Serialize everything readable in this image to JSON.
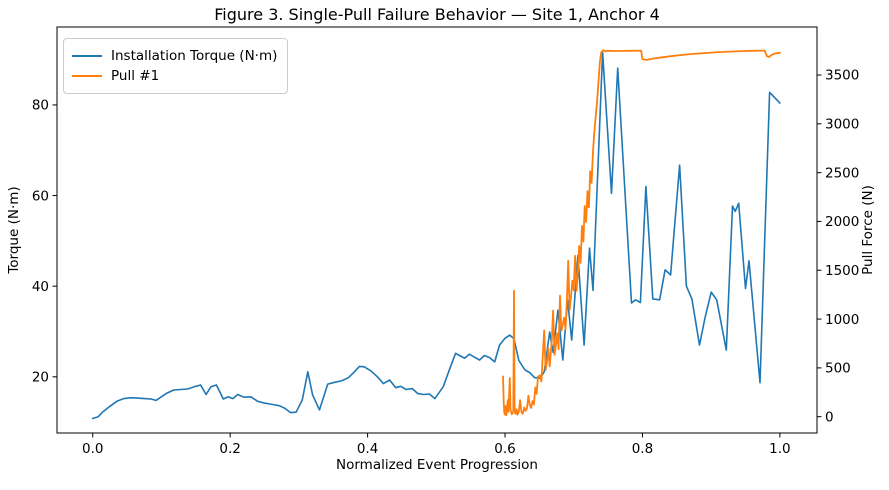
{
  "chart_data": {
    "type": "line",
    "title": "Figure 3. Single-Pull Failure Behavior — Site 1, Anchor 4",
    "xlabel": "Normalized Event Progression",
    "ylabel_left": "Torque (N·m)",
    "ylabel_right": "Pull Force (N)",
    "xlim": [
      -0.052,
      1.054
    ],
    "ylim_left": [
      7.6,
      97.2
    ],
    "ylim_right": [
      -167,
      3992
    ],
    "grid": false,
    "legend_position": "upper left",
    "background": "#ffffff",
    "spine_color": "#000000",
    "xticks": {
      "values": [
        0.0,
        0.2,
        0.4,
        0.6,
        0.8,
        1.0
      ],
      "labels": [
        "0.0",
        "0.2",
        "0.4",
        "0.6",
        "0.8",
        "1.0"
      ]
    },
    "yticks_left": {
      "values": [
        20,
        40,
        60,
        80
      ],
      "labels": [
        "20",
        "40",
        "60",
        "80"
      ]
    },
    "yticks_right": {
      "values": [
        0,
        500,
        1000,
        1500,
        2000,
        2500,
        3000,
        3500
      ],
      "labels": [
        "0",
        "500",
        "1000",
        "1500",
        "2000",
        "2500",
        "3000",
        "3500"
      ]
    },
    "series": [
      {
        "id": "installation-torque",
        "name": "Installation Torque (N·m)",
        "color": "#1f77b4",
        "axis": "left",
        "width": 1.6,
        "points": [
          [
            0.0,
            10.8
          ],
          [
            0.008,
            11.2
          ],
          [
            0.015,
            12.3
          ],
          [
            0.025,
            13.5
          ],
          [
            0.035,
            14.6
          ],
          [
            0.045,
            15.2
          ],
          [
            0.055,
            15.4
          ],
          [
            0.065,
            15.3
          ],
          [
            0.075,
            15.2
          ],
          [
            0.085,
            15.1
          ],
          [
            0.092,
            14.8
          ],
          [
            0.1,
            15.6
          ],
          [
            0.108,
            16.4
          ],
          [
            0.118,
            17.1
          ],
          [
            0.128,
            17.2
          ],
          [
            0.138,
            17.3
          ],
          [
            0.15,
            17.9
          ],
          [
            0.157,
            18.2
          ],
          [
            0.165,
            16.1
          ],
          [
            0.172,
            17.8
          ],
          [
            0.18,
            18.2
          ],
          [
            0.19,
            15.1
          ],
          [
            0.197,
            15.6
          ],
          [
            0.204,
            15.2
          ],
          [
            0.211,
            16.1
          ],
          [
            0.22,
            15.5
          ],
          [
            0.23,
            15.6
          ],
          [
            0.24,
            14.6
          ],
          [
            0.25,
            14.2
          ],
          [
            0.262,
            13.9
          ],
          [
            0.272,
            13.6
          ],
          [
            0.279,
            13.1
          ],
          [
            0.288,
            12.1
          ],
          [
            0.296,
            12.2
          ],
          [
            0.305,
            14.9
          ],
          [
            0.313,
            21.1
          ],
          [
            0.32,
            16.0
          ],
          [
            0.33,
            12.7
          ],
          [
            0.342,
            18.4
          ],
          [
            0.352,
            18.8
          ],
          [
            0.362,
            19.1
          ],
          [
            0.372,
            19.8
          ],
          [
            0.38,
            21.0
          ],
          [
            0.388,
            22.3
          ],
          [
            0.395,
            22.2
          ],
          [
            0.405,
            21.3
          ],
          [
            0.415,
            19.9
          ],
          [
            0.423,
            18.5
          ],
          [
            0.432,
            19.3
          ],
          [
            0.441,
            17.6
          ],
          [
            0.448,
            17.9
          ],
          [
            0.456,
            17.2
          ],
          [
            0.465,
            17.4
          ],
          [
            0.473,
            16.3
          ],
          [
            0.482,
            16.1
          ],
          [
            0.49,
            16.2
          ],
          [
            0.498,
            15.2
          ],
          [
            0.51,
            17.8
          ],
          [
            0.52,
            22.0
          ],
          [
            0.528,
            25.2
          ],
          [
            0.535,
            24.6
          ],
          [
            0.541,
            24.1
          ],
          [
            0.548,
            25.0
          ],
          [
            0.555,
            24.4
          ],
          [
            0.563,
            23.7
          ],
          [
            0.57,
            24.7
          ],
          [
            0.578,
            24.2
          ],
          [
            0.585,
            23.3
          ],
          [
            0.592,
            27.0
          ],
          [
            0.6,
            28.5
          ],
          [
            0.607,
            29.2
          ],
          [
            0.613,
            28.4
          ],
          [
            0.62,
            23.6
          ],
          [
            0.629,
            21.5
          ],
          [
            0.636,
            20.9
          ],
          [
            0.643,
            19.8
          ],
          [
            0.651,
            19.7
          ],
          [
            0.657,
            21.1
          ],
          [
            0.665,
            29.9
          ],
          [
            0.67,
            25.4
          ],
          [
            0.677,
            34.7
          ],
          [
            0.684,
            23.7
          ],
          [
            0.691,
            36.9
          ],
          [
            0.697,
            28.1
          ],
          [
            0.706,
            46.8
          ],
          [
            0.715,
            27.0
          ],
          [
            0.723,
            48.4
          ],
          [
            0.728,
            39.1
          ],
          [
            0.742,
            91.6
          ],
          [
            0.755,
            60.5
          ],
          [
            0.764,
            88.1
          ],
          [
            0.784,
            36.3
          ],
          [
            0.79,
            37.0
          ],
          [
            0.797,
            36.4
          ],
          [
            0.805,
            62.0
          ],
          [
            0.815,
            37.2
          ],
          [
            0.825,
            37.0
          ],
          [
            0.833,
            43.6
          ],
          [
            0.841,
            42.5
          ],
          [
            0.854,
            66.7
          ],
          [
            0.864,
            40.0
          ],
          [
            0.872,
            37.2
          ],
          [
            0.883,
            27.0
          ],
          [
            0.891,
            33.0
          ],
          [
            0.9,
            38.7
          ],
          [
            0.908,
            37.0
          ],
          [
            0.922,
            25.9
          ],
          [
            0.931,
            57.7
          ],
          [
            0.935,
            56.5
          ],
          [
            0.94,
            58.3
          ],
          [
            0.95,
            39.5
          ],
          [
            0.955,
            45.6
          ],
          [
            0.971,
            18.7
          ],
          [
            0.985,
            82.8
          ],
          [
            1.0,
            80.4
          ]
        ]
      },
      {
        "id": "pull-1",
        "name": "Pull #1",
        "color": "#ff7f0e",
        "axis": "right",
        "width": 1.8,
        "points": [
          [
            0.597,
            413
          ],
          [
            0.598,
            150
          ],
          [
            0.599,
            40
          ],
          [
            0.6,
            20
          ],
          [
            0.601,
            110
          ],
          [
            0.602,
            15
          ],
          [
            0.604,
            170
          ],
          [
            0.605,
            50
          ],
          [
            0.607,
            396
          ],
          [
            0.608,
            70
          ],
          [
            0.61,
            25
          ],
          [
            0.612,
            55
          ],
          [
            0.613,
            1291
          ],
          [
            0.614,
            90
          ],
          [
            0.615,
            30
          ],
          [
            0.617,
            75
          ],
          [
            0.618,
            20
          ],
          [
            0.62,
            50
          ],
          [
            0.622,
            170
          ],
          [
            0.624,
            45
          ],
          [
            0.626,
            30
          ],
          [
            0.628,
            95
          ],
          [
            0.63,
            60
          ],
          [
            0.632,
            85
          ],
          [
            0.634,
            215
          ],
          [
            0.636,
            120
          ],
          [
            0.638,
            90
          ],
          [
            0.64,
            160
          ],
          [
            0.642,
            125
          ],
          [
            0.644,
            300
          ],
          [
            0.646,
            235
          ],
          [
            0.648,
            410
          ],
          [
            0.651,
            425
          ],
          [
            0.653,
            360
          ],
          [
            0.655,
            630
          ],
          [
            0.657,
            884
          ],
          [
            0.659,
            476
          ],
          [
            0.661,
            555
          ],
          [
            0.663,
            700
          ],
          [
            0.665,
            515
          ],
          [
            0.668,
            782
          ],
          [
            0.67,
            1088
          ],
          [
            0.672,
            635
          ],
          [
            0.674,
            731
          ],
          [
            0.676,
            855
          ],
          [
            0.678,
            690
          ],
          [
            0.68,
            1240
          ],
          [
            0.682,
            880
          ],
          [
            0.684,
            945
          ],
          [
            0.686,
            1015
          ],
          [
            0.688,
            895
          ],
          [
            0.69,
            1190
          ],
          [
            0.692,
            1597
          ],
          [
            0.694,
            1095
          ],
          [
            0.696,
            1225
          ],
          [
            0.698,
            1393
          ],
          [
            0.7,
            1295
          ],
          [
            0.702,
            1648
          ],
          [
            0.704,
            1290
          ],
          [
            0.706,
            1475
          ],
          [
            0.708,
            1750
          ],
          [
            0.71,
            1575
          ],
          [
            0.712,
            1954
          ],
          [
            0.714,
            1795
          ],
          [
            0.716,
            2158
          ],
          [
            0.718,
            1995
          ],
          [
            0.72,
            2311
          ],
          [
            0.722,
            2145
          ],
          [
            0.724,
            2515
          ],
          [
            0.726,
            2395
          ],
          [
            0.728,
            2719
          ],
          [
            0.73,
            2923
          ],
          [
            0.732,
            3076
          ],
          [
            0.734,
            3229
          ],
          [
            0.736,
            3433
          ],
          [
            0.738,
            3637
          ],
          [
            0.74,
            3731
          ],
          [
            0.743,
            3755
          ],
          [
            0.746,
            3742
          ],
          [
            0.75,
            3748
          ],
          [
            0.76,
            3746
          ],
          [
            0.77,
            3747
          ],
          [
            0.78,
            3748
          ],
          [
            0.79,
            3749
          ],
          [
            0.798,
            3750
          ],
          [
            0.8,
            3662
          ],
          [
            0.806,
            3655
          ],
          [
            0.815,
            3668
          ],
          [
            0.825,
            3678
          ],
          [
            0.84,
            3692
          ],
          [
            0.855,
            3704
          ],
          [
            0.87,
            3714
          ],
          [
            0.885,
            3722
          ],
          [
            0.9,
            3730
          ],
          [
            0.915,
            3736
          ],
          [
            0.93,
            3741
          ],
          [
            0.945,
            3745
          ],
          [
            0.96,
            3748
          ],
          [
            0.972,
            3750
          ],
          [
            0.978,
            3749
          ],
          [
            0.981,
            3694
          ],
          [
            0.984,
            3684
          ],
          [
            0.988,
            3706
          ],
          [
            0.992,
            3720
          ],
          [
            1.0,
            3728
          ]
        ]
      }
    ]
  }
}
